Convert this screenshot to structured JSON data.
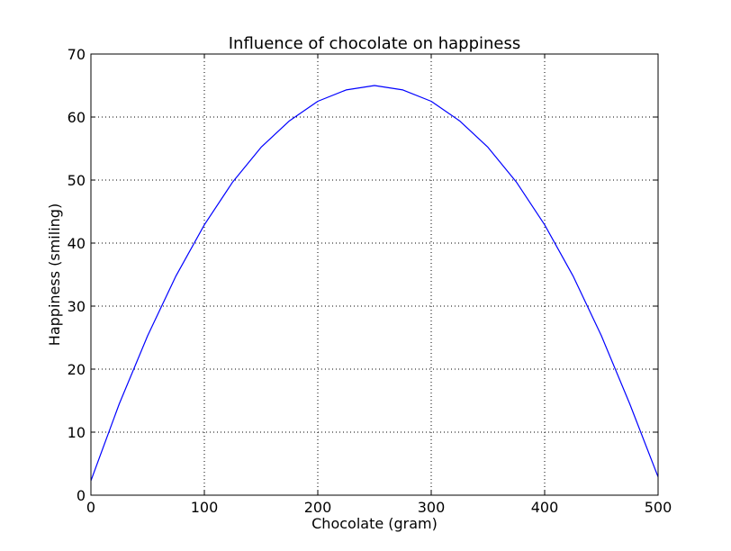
{
  "chart_data": {
    "type": "line",
    "title": "Influence of chocolate on happiness",
    "xlabel": "Chocolate (gram)",
    "ylabel": "Happiness (smiling)",
    "xlim": [
      0,
      500
    ],
    "ylim": [
      0,
      70
    ],
    "xticks": [
      "0",
      "100",
      "200",
      "300",
      "400",
      "500"
    ],
    "yticks": [
      "0",
      "10",
      "20",
      "30",
      "40",
      "50",
      "60",
      "70"
    ],
    "grid": true,
    "series": [
      {
        "color": "#0000ff",
        "x": [
          0,
          25,
          50,
          75,
          100,
          125,
          150,
          175,
          200,
          225,
          250,
          275,
          300,
          325,
          350,
          375,
          400,
          425,
          450,
          475,
          500
        ],
        "y": [
          2.3,
          14.5,
          25.3,
          34.8,
          42.9,
          49.7,
          55.2,
          59.4,
          62.5,
          64.3,
          65.0,
          64.3,
          62.5,
          59.4,
          55.2,
          49.7,
          42.9,
          34.8,
          25.3,
          14.5,
          2.9
        ]
      }
    ]
  }
}
